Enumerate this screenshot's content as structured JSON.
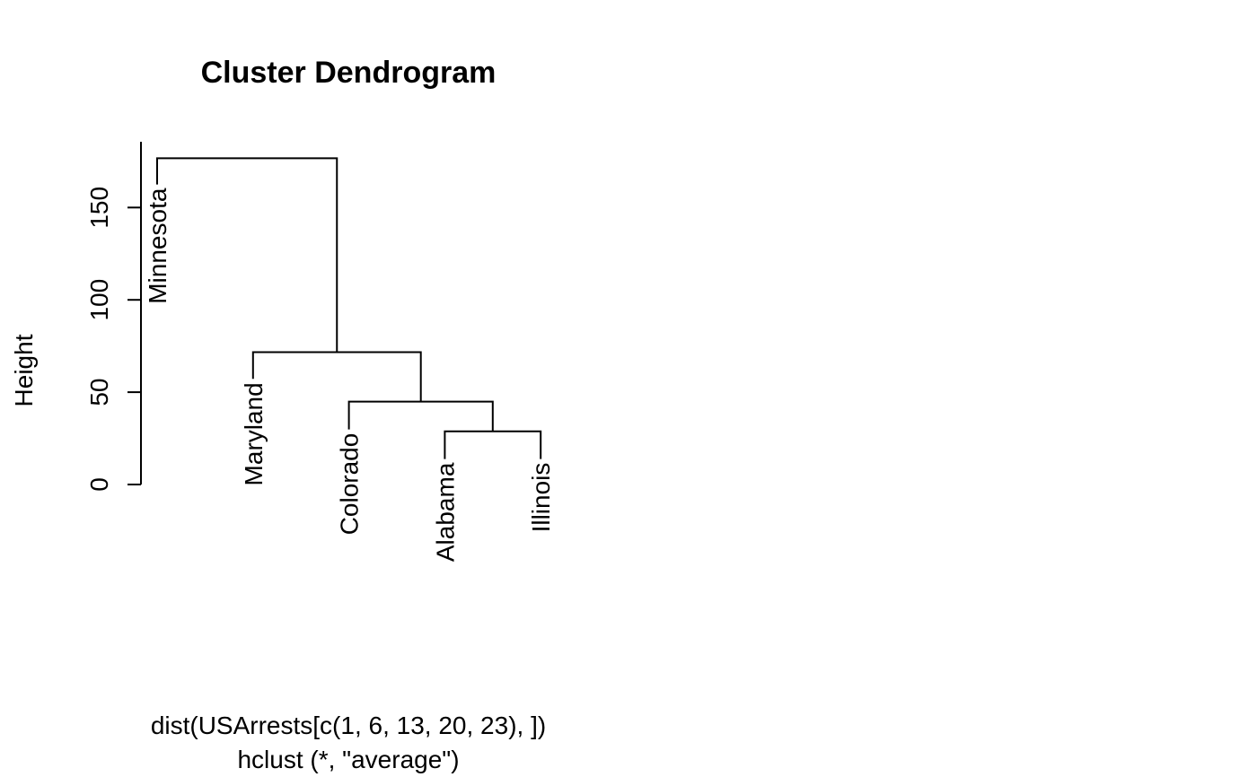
{
  "chart_data": {
    "type": "dendrogram",
    "title": "Cluster Dendrogram",
    "ylabel": "Height",
    "xlabel_lines": [
      "dist(USArrests[c(1, 6, 13, 20, 23), ])",
      "hclust (*, \"average\")"
    ],
    "ylim": [
      0,
      186
    ],
    "yticks": [
      0,
      50,
      100,
      150
    ],
    "leaves": [
      {
        "label": "Minnesota",
        "hang_height": 162.5
      },
      {
        "label": "Maryland",
        "hang_height": 57.2
      },
      {
        "label": "Colorado",
        "hang_height": 29.8
      },
      {
        "label": "Alabama",
        "hang_height": 13.8
      },
      {
        "label": "Illinois",
        "hang_height": 13.8
      }
    ],
    "merges": [
      {
        "left": [
          0,
          3
        ],
        "right": [
          0,
          4
        ],
        "height": 28.8
      },
      {
        "left": [
          0,
          2
        ],
        "right": [
          1,
          0
        ],
        "height": 44.9
      },
      {
        "left": [
          0,
          1
        ],
        "right": [
          1,
          1
        ],
        "height": 71.7
      },
      {
        "left": [
          0,
          0
        ],
        "right": [
          1,
          2
        ],
        "height": 176.7
      }
    ]
  }
}
